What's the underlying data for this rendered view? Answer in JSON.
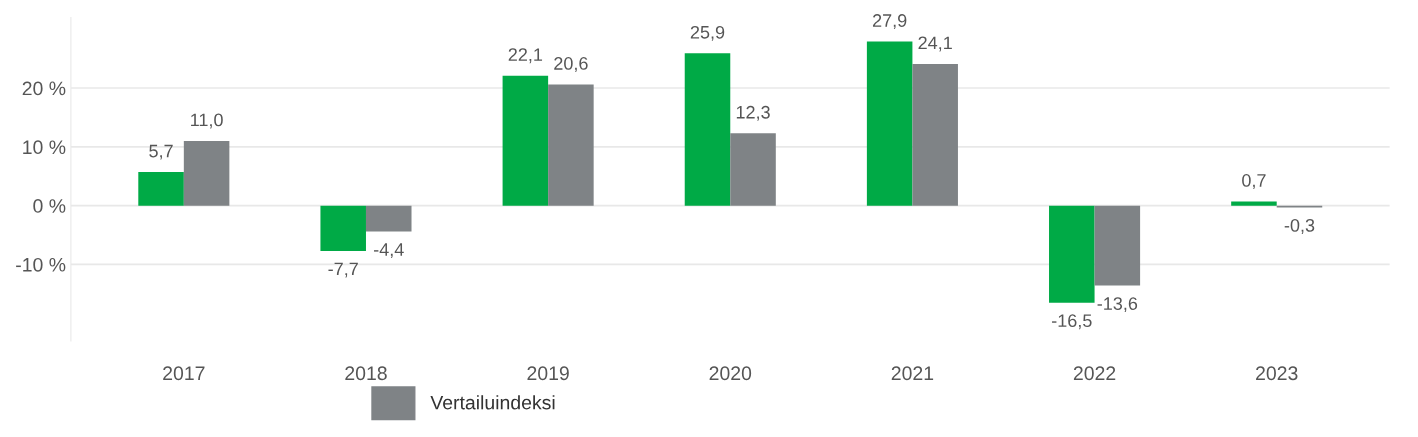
{
  "chart_data": {
    "type": "bar",
    "categories": [
      "2017",
      "2018",
      "2019",
      "2020",
      "2021",
      "2022",
      "2023"
    ],
    "series": [
      {
        "color": "#00aa46",
        "values": [
          5.7,
          -7.7,
          22.1,
          25.9,
          27.9,
          -16.5,
          0.7
        ],
        "value_labels": [
          "5,7",
          "-7,7",
          "22,1",
          "25,9",
          "27,9",
          "-16,5",
          "0,7"
        ]
      },
      {
        "name": "Vertailuindeksi",
        "color": "#7f8386",
        "values": [
          11.0,
          -4.4,
          20.6,
          12.3,
          24.1,
          -13.6,
          -0.3
        ],
        "value_labels": [
          "11,0",
          "-4,4",
          "20,6",
          "12,3",
          "24,1",
          "-13,6",
          "-0,3"
        ]
      }
    ],
    "ylim": [
      -23,
      32
    ],
    "yticks": [
      {
        "value": -10,
        "label": "-10 %"
      },
      {
        "value": 0,
        "label": "0 %"
      },
      {
        "value": 10,
        "label": "10 %"
      },
      {
        "value": 20,
        "label": "20 %"
      }
    ],
    "grid": "y",
    "legend": "bottom"
  }
}
